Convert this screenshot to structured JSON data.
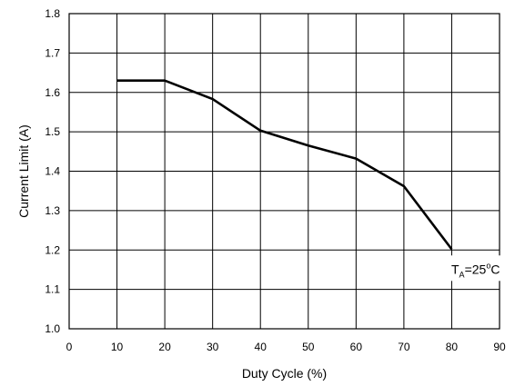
{
  "chart_data": {
    "type": "line",
    "title": "",
    "xlabel": "Duty Cycle (%)",
    "ylabel": "Current Limit (A)",
    "xlim": [
      0,
      90
    ],
    "ylim": [
      1.0,
      1.8
    ],
    "x_ticks": [
      0,
      10,
      20,
      30,
      40,
      50,
      60,
      70,
      80,
      90
    ],
    "y_ticks": [
      1.0,
      1.1,
      1.2,
      1.3,
      1.4,
      1.5,
      1.6,
      1.7,
      1.8
    ],
    "x_tick_labels": [
      "0",
      "10",
      "20",
      "30",
      "40",
      "50",
      "60",
      "70",
      "80",
      "90"
    ],
    "y_tick_labels": [
      "1.0",
      "1.1",
      "1.2",
      "1.3",
      "1.4",
      "1.5",
      "1.6",
      "1.7",
      "1.8"
    ],
    "grid": true,
    "series": [
      {
        "x": [
          10,
          20,
          30,
          40,
          50,
          60,
          70,
          80
        ],
        "y": [
          1.63,
          1.63,
          1.583,
          1.503,
          1.465,
          1.432,
          1.362,
          1.202
        ]
      }
    ],
    "annotation": {
      "prefix": "T",
      "subscript": "A",
      "value": "=25",
      "degree": "o",
      "unit": "C",
      "x": 85,
      "y": 1.14
    }
  }
}
